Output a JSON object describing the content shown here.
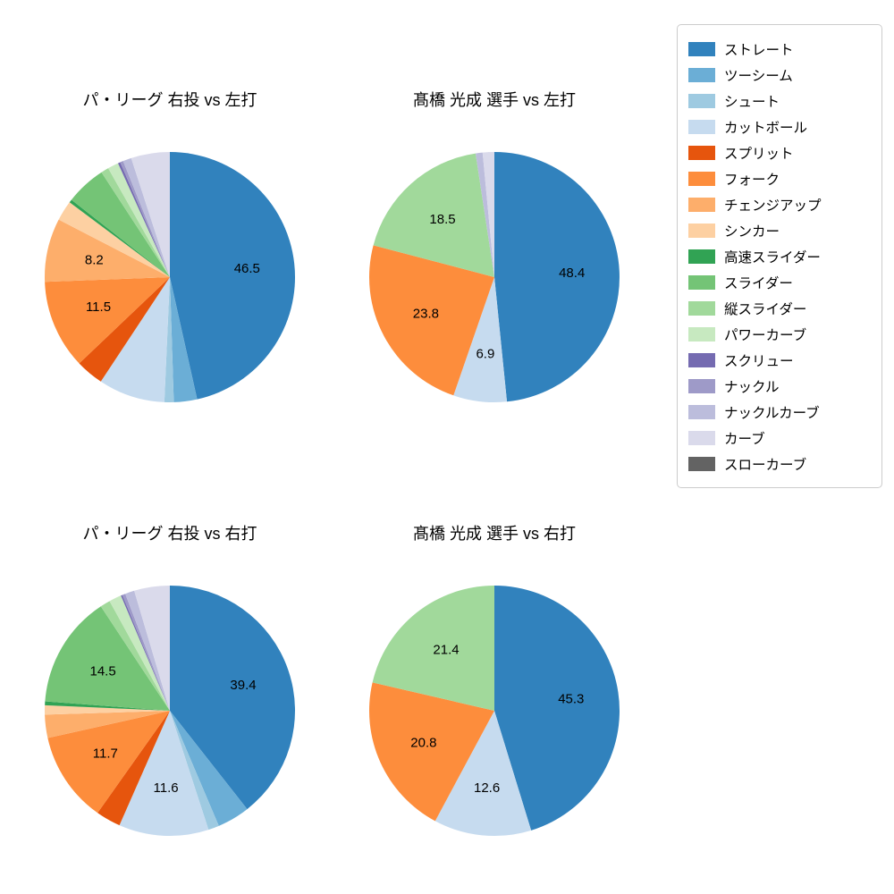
{
  "legend": {
    "items": [
      {
        "label": "ストレート",
        "color": "#3182bd"
      },
      {
        "label": "ツーシーム",
        "color": "#6baed6"
      },
      {
        "label": "シュート",
        "color": "#9ecae1"
      },
      {
        "label": "カットボール",
        "color": "#c6dbef"
      },
      {
        "label": "スプリット",
        "color": "#e6550d"
      },
      {
        "label": "フォーク",
        "color": "#fd8d3c"
      },
      {
        "label": "チェンジアップ",
        "color": "#fdae6b"
      },
      {
        "label": "シンカー",
        "color": "#fdd0a2"
      },
      {
        "label": "高速スライダー",
        "color": "#31a354"
      },
      {
        "label": "スライダー",
        "color": "#74c476"
      },
      {
        "label": "縦スライダー",
        "color": "#a1d99b"
      },
      {
        "label": "パワーカーブ",
        "color": "#c7e9c0"
      },
      {
        "label": "スクリュー",
        "color": "#756bb1"
      },
      {
        "label": "ナックル",
        "color": "#9e9ac8"
      },
      {
        "label": "ナックルカーブ",
        "color": "#bcbddc"
      },
      {
        "label": "カーブ",
        "color": "#dadaeb"
      },
      {
        "label": "スローカーブ",
        "color": "#636363"
      }
    ]
  },
  "chart_data": [
    {
      "type": "pie",
      "title": "パ・リーグ 右投 vs 左打",
      "start_angle": "top",
      "direction": "clockwise",
      "slices": [
        {
          "name": "ストレート",
          "value": 46.5,
          "label": "46.5"
        },
        {
          "name": "ツーシーム",
          "value": 3.0,
          "label": ""
        },
        {
          "name": "シュート",
          "value": 1.2,
          "label": ""
        },
        {
          "name": "カットボール",
          "value": 8.6,
          "label": ""
        },
        {
          "name": "スプリット",
          "value": 3.6,
          "label": ""
        },
        {
          "name": "フォーク",
          "value": 11.5,
          "label": "11.5"
        },
        {
          "name": "チェンジアップ",
          "value": 8.2,
          "label": "8.2"
        },
        {
          "name": "シンカー",
          "value": 2.6,
          "label": ""
        },
        {
          "name": "高速スライダー",
          "value": 0.4,
          "label": ""
        },
        {
          "name": "スライダー",
          "value": 5.2,
          "label": ""
        },
        {
          "name": "縦スライダー",
          "value": 1.0,
          "label": ""
        },
        {
          "name": "パワーカーブ",
          "value": 1.4,
          "label": ""
        },
        {
          "name": "スクリュー",
          "value": 0.3,
          "label": ""
        },
        {
          "name": "ナックル",
          "value": 0.4,
          "label": ""
        },
        {
          "name": "ナックルカーブ",
          "value": 1.1,
          "label": ""
        },
        {
          "name": "カーブ",
          "value": 5.0,
          "label": ""
        }
      ]
    },
    {
      "type": "pie",
      "title": "髙橋 光成 選手 vs 左打",
      "start_angle": "top",
      "direction": "clockwise",
      "slices": [
        {
          "name": "ストレート",
          "value": 48.4,
          "label": "48.4"
        },
        {
          "name": "カットボール",
          "value": 6.9,
          "label": "6.9"
        },
        {
          "name": "フォーク",
          "value": 23.8,
          "label": "23.8"
        },
        {
          "name": "縦スライダー",
          "value": 18.5,
          "label": "18.5"
        },
        {
          "name": "ナックルカーブ",
          "value": 0.9,
          "label": ""
        },
        {
          "name": "カーブ",
          "value": 1.5,
          "label": ""
        }
      ]
    },
    {
      "type": "pie",
      "title": "パ・リーグ 右投 vs 右打",
      "start_angle": "top",
      "direction": "clockwise",
      "slices": [
        {
          "name": "ストレート",
          "value": 39.4,
          "label": "39.4"
        },
        {
          "name": "ツーシーム",
          "value": 4.2,
          "label": ""
        },
        {
          "name": "シュート",
          "value": 1.4,
          "label": ""
        },
        {
          "name": "カットボール",
          "value": 11.6,
          "label": "11.6"
        },
        {
          "name": "スプリット",
          "value": 3.2,
          "label": ""
        },
        {
          "name": "フォーク",
          "value": 11.7,
          "label": "11.7"
        },
        {
          "name": "チェンジアップ",
          "value": 3.0,
          "label": ""
        },
        {
          "name": "シンカー",
          "value": 1.2,
          "label": ""
        },
        {
          "name": "高速スライダー",
          "value": 0.5,
          "label": ""
        },
        {
          "name": "スライダー",
          "value": 14.5,
          "label": "14.5"
        },
        {
          "name": "縦スライダー",
          "value": 1.3,
          "label": ""
        },
        {
          "name": "パワーカーブ",
          "value": 1.6,
          "label": ""
        },
        {
          "name": "スクリュー",
          "value": 0.2,
          "label": ""
        },
        {
          "name": "ナックル",
          "value": 0.4,
          "label": ""
        },
        {
          "name": "ナックルカーブ",
          "value": 1.2,
          "label": ""
        },
        {
          "name": "カーブ",
          "value": 4.6,
          "label": ""
        }
      ]
    },
    {
      "type": "pie",
      "title": "髙橋 光成 選手 vs 右打",
      "start_angle": "top",
      "direction": "clockwise",
      "slices": [
        {
          "name": "ストレート",
          "value": 45.3,
          "label": "45.3"
        },
        {
          "name": "カットボール",
          "value": 12.6,
          "label": "12.6"
        },
        {
          "name": "フォーク",
          "value": 20.8,
          "label": "20.8"
        },
        {
          "name": "縦スライダー",
          "value": 21.4,
          "label": "21.4"
        }
      ]
    }
  ]
}
